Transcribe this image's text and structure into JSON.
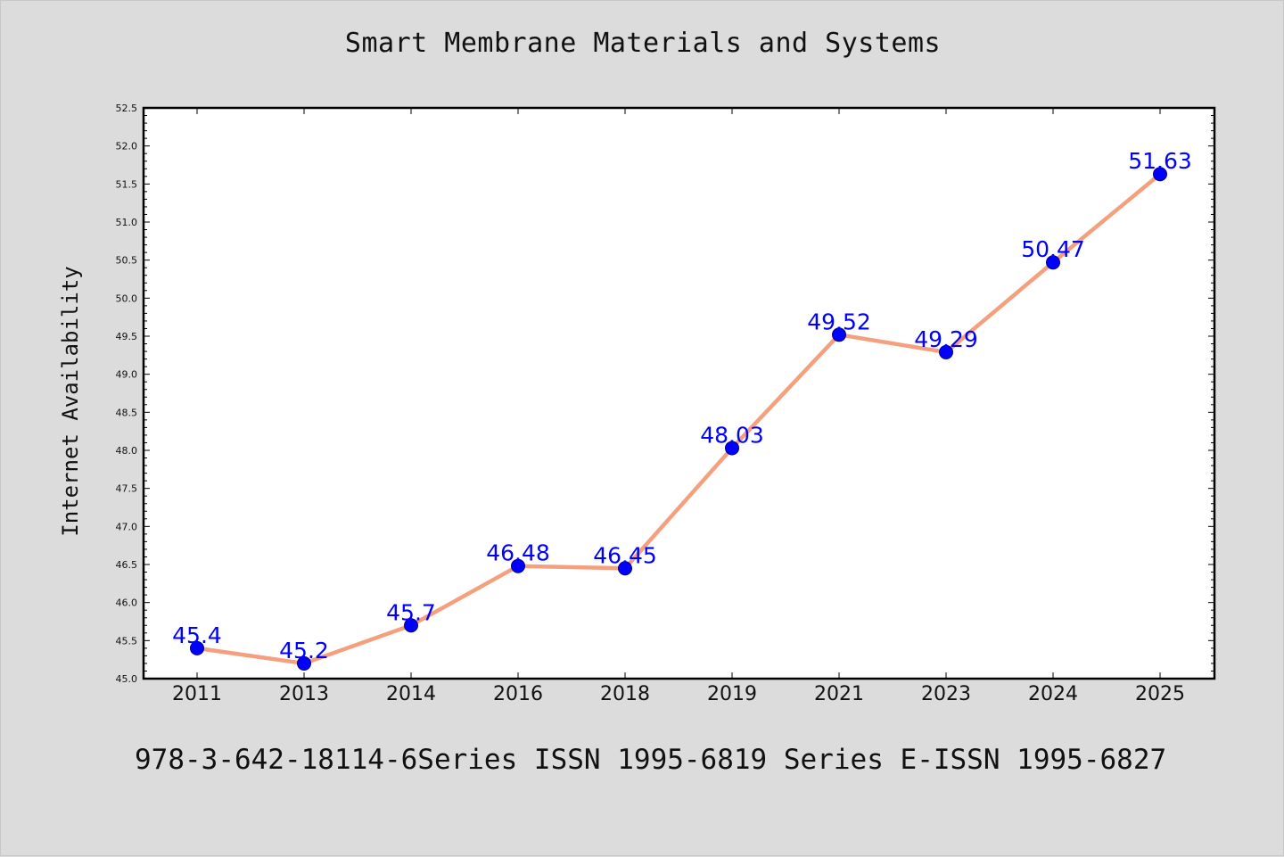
{
  "chart_data": {
    "type": "line",
    "title": "Smart Membrane Materials and Systems",
    "xlabel": "",
    "ylabel": "Internet Availability",
    "categories": [
      "2011",
      "2013",
      "2014",
      "2016",
      "2018",
      "2019",
      "2021",
      "2023",
      "2024",
      "2025"
    ],
    "series": [
      {
        "values": [
          45.4,
          45.2,
          45.7,
          46.48,
          46.45,
          48.03,
          49.52,
          49.29,
          50.47,
          51.63
        ],
        "labels": [
          "45.4",
          "45.2",
          "45.7",
          "46.48",
          "46.45",
          "48.03",
          "49.52",
          "49.29",
          "50.47",
          "51.63"
        ]
      }
    ],
    "ylim": [
      45.0,
      52.5
    ],
    "yticks": [
      "45.0",
      "45.5",
      "46.0",
      "46.5",
      "47.0",
      "47.5",
      "48.0",
      "48.5",
      "49.0",
      "49.5",
      "50.0",
      "50.5",
      "51.0",
      "51.5",
      "52.0",
      "52.5"
    ],
    "grid": false,
    "colors": {
      "line": "#f4a07e",
      "marker": "#0000ff",
      "marker_edge": "#000080",
      "data_label": "#0000ff",
      "plot_background": "#ffffff",
      "figure_background": "#dcdcdc"
    }
  },
  "footnote": "978-3-642-18114-6Series ISSN 1995-6819 Series E-ISSN 1995-6827"
}
